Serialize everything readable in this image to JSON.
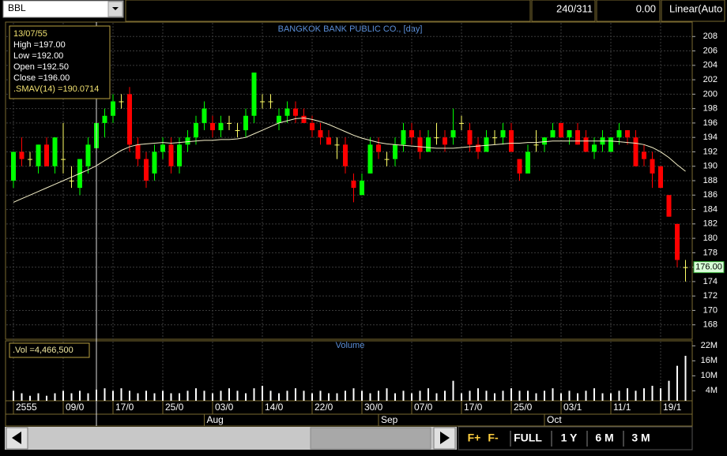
{
  "toolbar": {
    "symbol": "BBL",
    "count": "240/311",
    "value": "0.00",
    "scale": "Linear(Auto"
  },
  "chart_data": [
    {
      "type": "candlestick",
      "title": "BANGKOK BANK PUBLIC CO., [day]",
      "categories": [
        "2555",
        null,
        null,
        null,
        null,
        null,
        "09/0",
        null,
        null,
        null,
        null,
        null,
        "17/0",
        null,
        null,
        null,
        null,
        null,
        "25/0",
        null,
        null,
        null,
        null,
        null,
        "03/0",
        null,
        null,
        null,
        null,
        null,
        "14/0",
        null,
        null,
        null,
        null,
        null,
        "22/0",
        null,
        null,
        null,
        null,
        null,
        "30/0",
        null,
        null,
        null,
        null,
        null,
        "07/0",
        null,
        null,
        null,
        null,
        null,
        "17/0",
        null,
        null,
        null,
        null,
        null,
        "25/0",
        null,
        null,
        null,
        null,
        null,
        "03/1",
        null,
        null,
        null,
        null,
        null,
        "11/1",
        null,
        null,
        null,
        null,
        null,
        "19/1",
        null,
        null,
        null
      ],
      "months": [
        null,
        null,
        null,
        null,
        null,
        null,
        null,
        null,
        null,
        null,
        null,
        null,
        null,
        null,
        null,
        null,
        null,
        null,
        null,
        null,
        null,
        null,
        null,
        "Aug",
        null,
        null,
        null,
        null,
        null,
        null,
        null,
        null,
        null,
        null,
        null,
        null,
        null,
        null,
        null,
        null,
        null,
        null,
        null,
        null,
        "Sep",
        null,
        null,
        null,
        null,
        null,
        null,
        null,
        null,
        null,
        null,
        null,
        null,
        null,
        null,
        null,
        null,
        null,
        null,
        null,
        "Oct",
        null,
        null,
        null,
        null,
        null,
        null,
        null,
        null,
        null,
        null,
        null,
        null,
        null,
        null,
        null,
        null,
        null
      ],
      "open": [
        188,
        192,
        191,
        190,
        193,
        190,
        191,
        188,
        187,
        190,
        192.5,
        196,
        197,
        199,
        200,
        193,
        191,
        189,
        192,
        193,
        190,
        193,
        194,
        196,
        196,
        195,
        196,
        195,
        195,
        197,
        199,
        199,
        196,
        197,
        198,
        197,
        196,
        195,
        194,
        193,
        193,
        188,
        186,
        189,
        193,
        191,
        191,
        193,
        195,
        194,
        192,
        194,
        194,
        194,
        196,
        195,
        193,
        192,
        194,
        194,
        195,
        191,
        189,
        193,
        193,
        194,
        196,
        194,
        195,
        194,
        192,
        193,
        192,
        194,
        195,
        194,
        192,
        191,
        190,
        186,
        182,
        176
      ],
      "high": [
        192,
        194,
        192,
        193,
        194,
        194,
        196,
        190,
        191,
        194,
        197,
        198,
        200,
        200,
        201,
        194,
        192,
        193,
        194,
        194,
        194,
        195,
        197,
        199,
        197,
        197,
        197,
        196,
        198,
        203,
        200,
        200,
        198,
        199,
        199,
        198,
        197,
        196,
        195,
        194,
        194,
        189,
        189,
        194,
        194,
        192,
        194,
        196,
        196,
        195,
        195,
        196,
        195,
        198,
        197,
        196,
        194,
        195,
        195,
        196,
        196,
        191,
        193,
        195,
        194,
        196,
        196,
        195,
        196,
        195,
        194,
        195,
        194,
        196,
        195,
        195,
        193,
        192,
        190,
        186,
        182,
        177
      ],
      "low": [
        187,
        190,
        190,
        189,
        190,
        189,
        189,
        187,
        186,
        189,
        192,
        194,
        196,
        198,
        192,
        190,
        187,
        188,
        191,
        189,
        189,
        192,
        193,
        195,
        194,
        194,
        195,
        194,
        194,
        196,
        198,
        198,
        195,
        196,
        196,
        196,
        194,
        193,
        193,
        191,
        189,
        185,
        186,
        189,
        191,
        190,
        190,
        192,
        193,
        191,
        192,
        193,
        192,
        193,
        195,
        192,
        191,
        192,
        193,
        193,
        192,
        188,
        189,
        192,
        192,
        194,
        194,
        193,
        193,
        192,
        191,
        192,
        192,
        193,
        193,
        190,
        190,
        187,
        187,
        183,
        176,
        174
      ],
      "close": [
        192,
        191,
        191,
        193,
        190,
        194,
        191,
        188,
        191,
        193,
        196,
        197,
        199,
        199,
        193,
        191,
        188,
        192,
        193,
        190,
        193,
        194,
        196,
        198,
        195,
        196,
        196,
        195,
        197,
        203,
        199,
        199,
        197,
        198,
        197,
        196,
        195,
        194,
        193,
        193,
        190,
        187,
        188,
        193,
        192,
        191,
        193,
        195,
        194,
        192,
        194,
        194,
        193,
        195,
        196,
        193,
        192,
        194,
        194,
        195,
        192,
        189,
        192,
        193,
        194,
        195,
        194,
        195,
        193,
        192,
        193,
        194,
        194,
        195,
        194,
        190,
        191,
        189,
        187,
        183,
        177,
        176
      ],
      "up_color": "#00ff00",
      "down_color": "#ff0000",
      "flat_color": "#ffff66",
      "sma": {
        "name": ".SMAV(14)",
        "color": "#f5f0c8",
        "values": [
          185,
          185.5,
          186,
          186.5,
          187,
          187.5,
          188,
          188.5,
          189,
          189.5,
          190.07,
          190.8,
          191.5,
          192.2,
          192.7,
          193,
          193.1,
          193.2,
          193.3,
          193.2,
          193.3,
          193.4,
          193.5,
          193.6,
          193.6,
          193.7,
          193.7,
          193.8,
          194,
          194.5,
          195,
          195.5,
          196,
          196.3,
          196.6,
          196.7,
          196.5,
          196.2,
          195.8,
          195.3,
          194.8,
          194.3,
          193.9,
          193.6,
          193.3,
          193.1,
          193,
          192.9,
          192.8,
          192.7,
          192.6,
          192.5,
          192.5,
          192.5,
          192.6,
          192.7,
          192.8,
          192.9,
          193,
          193.1,
          193.2,
          193.2,
          193.3,
          193.3,
          193.4,
          193.5,
          193.5,
          193.5,
          193.5,
          193.5,
          193.5,
          193.5,
          193.5,
          193.4,
          193.3,
          193.2,
          193,
          192.6,
          192,
          191.2,
          190.2,
          189.3
        ]
      },
      "ylim": [
        166,
        210
      ],
      "yticks": [
        168,
        170,
        172,
        174,
        176,
        178,
        180,
        182,
        184,
        186,
        188,
        190,
        192,
        194,
        196,
        198,
        200,
        202,
        204,
        206,
        208
      ],
      "grid": true,
      "last_price": {
        "value": 176,
        "label": "176.00"
      },
      "info": [
        "13/07/55",
        "High  =197.00",
        "Low   =192.00",
        "Open  =192.50",
        "Close =196.00",
        ".SMAV(14)   =190.0714"
      ]
    },
    {
      "type": "bar",
      "title": "Volume",
      "label": ".Vol  =4,466,500",
      "color": "#ffffff",
      "values": [
        4,
        3,
        2,
        3,
        2,
        3,
        4,
        3,
        4,
        3,
        4.4665,
        5,
        4,
        5,
        4,
        3,
        4,
        3,
        4,
        3,
        3,
        4,
        5,
        4,
        3,
        4,
        5,
        4,
        3,
        5,
        6,
        4,
        3,
        4,
        5,
        4,
        3,
        4,
        3,
        3,
        4,
        5,
        4,
        3,
        4,
        5,
        3,
        4,
        3,
        4,
        5,
        3,
        4,
        8,
        3,
        4,
        5,
        4,
        3,
        4,
        5,
        4,
        4,
        3,
        4,
        5,
        3,
        4,
        3,
        4,
        5,
        3,
        3,
        4,
        5,
        4,
        5,
        6,
        5,
        8,
        14,
        18
      ],
      "ylim": [
        0,
        24
      ],
      "yticks": [
        {
          "value": 4,
          "label": "4M"
        },
        {
          "value": 10,
          "label": "10M"
        },
        {
          "value": 16,
          "label": "16M"
        },
        {
          "value": 22,
          "label": "22M"
        }
      ]
    }
  ],
  "nav": {
    "buttons": [
      "F+",
      "F-",
      "FULL",
      "1 Y",
      "6 M",
      "3 M"
    ]
  }
}
